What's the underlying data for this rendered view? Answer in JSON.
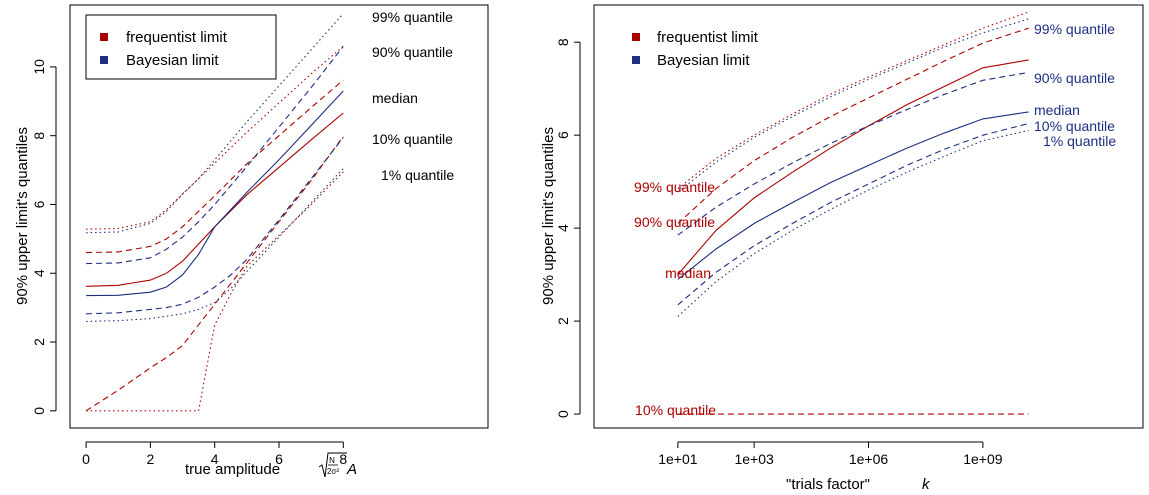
{
  "colors": {
    "frequentist": "#aa0000",
    "bayesian": "#1c2f80"
  },
  "chart_data": [
    {
      "type": "line",
      "xlabel": "true amplitude",
      "xlabel_math": "√(N/2σ²) A",
      "ylabel": "90% upper limit's quantiles",
      "xlim": [
        -0.5,
        12.5
      ],
      "ylim": [
        -0.5,
        11.8
      ],
      "xticks": [
        0,
        2,
        4,
        6,
        8
      ],
      "yticks": [
        0,
        2,
        4,
        6,
        8,
        10
      ],
      "legend": {
        "position": "top-left",
        "entries": [
          "frequentist limit",
          "Bayesian limit"
        ]
      },
      "annotations": [
        "99% quantile",
        "90% quantile",
        "median",
        "10% quantile",
        "1% quantile"
      ],
      "x": [
        0,
        1,
        2,
        2.5,
        3,
        3.5,
        4,
        4.5,
        5,
        6,
        7,
        8
      ],
      "series": [
        {
          "group": "frequentist",
          "quantile": "99%",
          "style": "dotted",
          "values": [
            5.28,
            5.3,
            5.5,
            5.85,
            6.3,
            6.75,
            7.2,
            7.65,
            8.1,
            8.95,
            9.8,
            10.6
          ]
        },
        {
          "group": "frequentist",
          "quantile": "90%",
          "style": "dashed",
          "values": [
            4.6,
            4.62,
            4.78,
            5.0,
            5.35,
            5.8,
            6.25,
            6.72,
            7.18,
            8.0,
            8.82,
            9.62
          ]
        },
        {
          "group": "frequentist",
          "quantile": "median",
          "style": "solid",
          "values": [
            3.62,
            3.65,
            3.8,
            4.0,
            4.35,
            4.85,
            5.35,
            5.82,
            6.28,
            7.08,
            7.88,
            8.66
          ]
        },
        {
          "group": "frequentist",
          "quantile": "10%",
          "style": "dashed",
          "values": [
            0.0,
            0.6,
            1.25,
            1.55,
            1.9,
            2.5,
            3.1,
            3.7,
            4.3,
            5.5,
            6.7,
            7.98
          ]
        },
        {
          "group": "frequentist",
          "quantile": "1%",
          "style": "dotted",
          "values": [
            0.0,
            0.0,
            0.0,
            0.0,
            0.0,
            0.0,
            2.5,
            3.4,
            4.2,
            5.1,
            6.0,
            6.95
          ]
        },
        {
          "group": "bayesian",
          "quantile": "99%",
          "style": "dotted",
          "values": [
            5.18,
            5.2,
            5.45,
            5.8,
            6.3,
            6.75,
            7.3,
            7.85,
            8.4,
            9.45,
            10.5,
            11.55
          ]
        },
        {
          "group": "bayesian",
          "quantile": "90%",
          "style": "dashed",
          "values": [
            4.28,
            4.3,
            4.45,
            4.7,
            5.05,
            5.5,
            6.0,
            6.55,
            7.1,
            8.25,
            9.4,
            10.6
          ]
        },
        {
          "group": "bayesian",
          "quantile": "median",
          "style": "solid",
          "values": [
            3.35,
            3.36,
            3.45,
            3.6,
            3.95,
            4.55,
            5.35,
            5.85,
            6.35,
            7.3,
            8.3,
            9.3
          ]
        },
        {
          "group": "bayesian",
          "quantile": "10%",
          "style": "dashed",
          "values": [
            2.82,
            2.85,
            2.95,
            3.0,
            3.1,
            3.3,
            3.6,
            3.95,
            4.4,
            5.55,
            6.75,
            7.95
          ]
        },
        {
          "group": "bayesian",
          "quantile": "1%",
          "style": "dotted",
          "values": [
            2.6,
            2.62,
            2.68,
            2.75,
            2.82,
            2.95,
            3.15,
            3.55,
            4.05,
            5.05,
            6.05,
            7.05
          ]
        }
      ]
    },
    {
      "type": "line",
      "xlabel": "\"trials factor\"",
      "xlabel_var": "k",
      "x_scale": "log",
      "ylabel": "90% upper limit's quantiles",
      "xlim": [
        -1.2,
        13.2
      ],
      "ylim": [
        -0.3,
        8.8
      ],
      "xticks": [
        1,
        3,
        6,
        9
      ],
      "xtick_labels": [
        "1e+01",
        "1e+03",
        "1e+06",
        "1e+09"
      ],
      "yticks": [
        0,
        2,
        4,
        6,
        8
      ],
      "legend": {
        "position": "top-left",
        "entries": [
          "frequentist limit",
          "Bayesian limit"
        ]
      },
      "annotations_frequentist": [
        "99% quantile",
        "90% quantile",
        "median",
        "10% quantile"
      ],
      "annotations_bayesian": [
        "99% quantile",
        "90% quantile",
        "median",
        "10% quantile",
        "1% quantile"
      ],
      "log10_x": [
        1,
        2,
        3,
        4,
        5,
        6,
        7,
        8,
        9,
        10.2
      ],
      "series": [
        {
          "group": "frequentist",
          "quantile": "99%",
          "style": "dotted",
          "values": [
            4.85,
            5.5,
            6.0,
            6.45,
            6.88,
            7.25,
            7.6,
            7.95,
            8.3,
            8.65
          ]
        },
        {
          "group": "frequentist",
          "quantile": "90%",
          "style": "dashed",
          "values": [
            4.1,
            4.85,
            5.45,
            5.95,
            6.4,
            6.8,
            7.2,
            7.6,
            7.98,
            8.3
          ]
        },
        {
          "group": "frequentist",
          "quantile": "median",
          "style": "solid",
          "values": [
            3.0,
            3.95,
            4.65,
            5.2,
            5.72,
            6.2,
            6.65,
            7.05,
            7.45,
            7.62
          ]
        },
        {
          "group": "frequentist",
          "quantile": "10%",
          "style": "dashed",
          "values": [
            0,
            0,
            0,
            0,
            0,
            0,
            0,
            0,
            0,
            0
          ]
        },
        {
          "group": "bayesian",
          "quantile": "99%",
          "style": "dotted",
          "values": [
            4.78,
            5.42,
            5.95,
            6.4,
            6.82,
            7.2,
            7.55,
            7.9,
            8.2,
            8.5
          ]
        },
        {
          "group": "bayesian",
          "quantile": "90%",
          "style": "dashed",
          "values": [
            3.85,
            4.45,
            4.95,
            5.4,
            5.82,
            6.2,
            6.55,
            6.88,
            7.18,
            7.35
          ]
        },
        {
          "group": "bayesian",
          "quantile": "median",
          "style": "solid",
          "values": [
            2.9,
            3.55,
            4.1,
            4.55,
            4.98,
            5.35,
            5.72,
            6.05,
            6.35,
            6.5
          ]
        },
        {
          "group": "bayesian",
          "quantile": "10%",
          "style": "dashed",
          "values": [
            2.35,
            3.05,
            3.62,
            4.1,
            4.55,
            4.95,
            5.35,
            5.7,
            6.0,
            6.25
          ]
        },
        {
          "group": "bayesian",
          "quantile": "1%",
          "style": "dotted",
          "values": [
            2.1,
            2.85,
            3.45,
            3.95,
            4.4,
            4.82,
            5.2,
            5.55,
            5.88,
            6.1
          ]
        }
      ]
    }
  ]
}
